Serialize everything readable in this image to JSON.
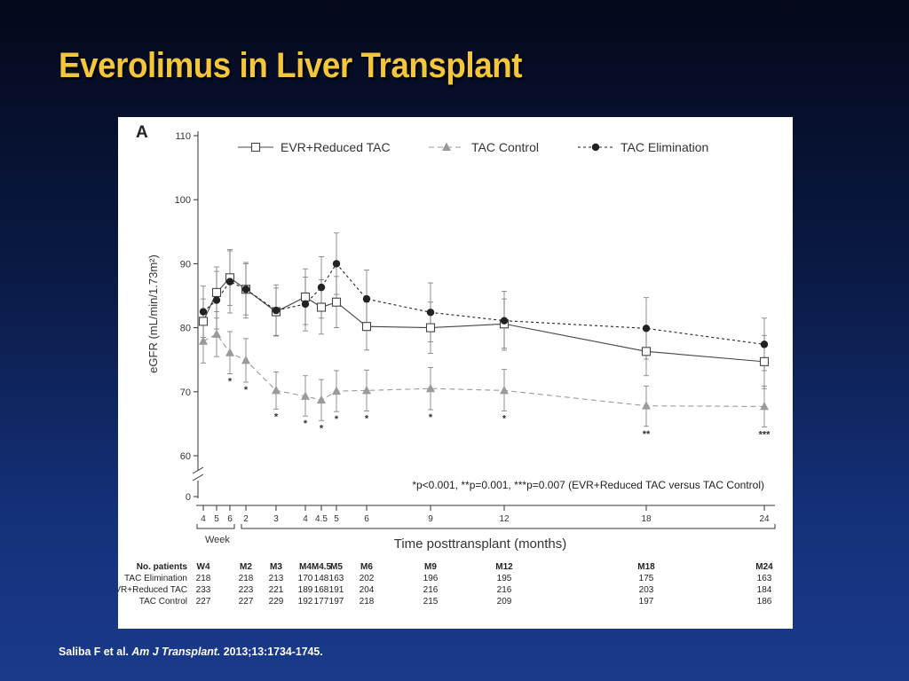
{
  "slide": {
    "title": "Everolimus in Liver Transplant",
    "citation": {
      "authors": "Saliba F et al.",
      "journal": "Am J Transplant.",
      "details": "2013;13:1734-1745."
    }
  },
  "chart_data": {
    "type": "line",
    "panel_label": "A",
    "xlabel": "Time posttransplant (months)",
    "ylabel": "eGFR (mL/min/1.73m²)",
    "ylim": [
      60,
      110
    ],
    "yticks": [
      "110",
      "100",
      "90",
      "80",
      "70",
      "60"
    ],
    "y_zero_label": "0",
    "week_group_label": "Week",
    "x_timepoints": [
      {
        "key": "W4",
        "tick": "4"
      },
      {
        "key": "W5",
        "tick": "5"
      },
      {
        "key": "W6",
        "tick": "6"
      },
      {
        "key": "M2",
        "tick": "2"
      },
      {
        "key": "M3",
        "tick": "3"
      },
      {
        "key": "M4",
        "tick": "4"
      },
      {
        "key": "M4.5",
        "tick": "4.5"
      },
      {
        "key": "M5",
        "tick": "5"
      },
      {
        "key": "M6",
        "tick": "6"
      },
      {
        "key": "M9",
        "tick": "9"
      },
      {
        "key": "M12",
        "tick": "12"
      },
      {
        "key": "M18",
        "tick": "18"
      },
      {
        "key": "M24",
        "tick": "24"
      }
    ],
    "series": [
      {
        "name": "EVR+Reduced TAC",
        "marker": "open-square",
        "line": "solid",
        "color": "#444444",
        "points": [
          {
            "t": "W4",
            "y": 81.0,
            "lo": 77.5,
            "hi": 84.5
          },
          {
            "t": "W5",
            "y": 85.5,
            "lo": 81.5,
            "hi": 89.5
          },
          {
            "t": "W6",
            "y": 87.8,
            "lo": 83.5,
            "hi": 92.0
          },
          {
            "t": "M2",
            "y": 86.0,
            "lo": 82.0,
            "hi": 90.0
          },
          {
            "t": "M3",
            "y": 82.5,
            "lo": 78.8,
            "hi": 86.2
          },
          {
            "t": "M4",
            "y": 84.8,
            "lo": 80.5,
            "hi": 89.2
          },
          {
            "t": "M4.5",
            "y": 83.2,
            "lo": 79.0,
            "hi": 87.5
          },
          {
            "t": "M5",
            "y": 84.0,
            "lo": 80.0,
            "hi": 88.0
          },
          {
            "t": "M6",
            "y": 80.2,
            "lo": 76.5,
            "hi": 84.0
          },
          {
            "t": "M9",
            "y": 80.0,
            "lo": 76.0,
            "hi": 84.0
          },
          {
            "t": "M12",
            "y": 80.6,
            "lo": 76.8,
            "hi": 84.5
          },
          {
            "t": "M18",
            "y": 76.3,
            "lo": 72.5,
            "hi": 80.2
          },
          {
            "t": "M24",
            "y": 74.7,
            "lo": 70.5,
            "hi": 78.8
          }
        ]
      },
      {
        "name": "TAC Control",
        "marker": "triangle",
        "line": "dashed",
        "color": "#9a9a9a",
        "points": [
          {
            "t": "W4",
            "y": 77.9,
            "lo": 74.5,
            "hi": 81.3
          },
          {
            "t": "W5",
            "y": 79.0,
            "lo": 75.5,
            "hi": 82.5
          },
          {
            "t": "W6",
            "y": 76.1,
            "lo": 72.8,
            "hi": 79.4
          },
          {
            "t": "M2",
            "y": 74.9,
            "lo": 71.5,
            "hi": 78.3
          },
          {
            "t": "M3",
            "y": 70.2,
            "lo": 67.3,
            "hi": 73.1
          },
          {
            "t": "M4",
            "y": 69.3,
            "lo": 66.2,
            "hi": 72.5
          },
          {
            "t": "M4.5",
            "y": 68.7,
            "lo": 65.5,
            "hi": 71.9
          },
          {
            "t": "M5",
            "y": 70.1,
            "lo": 66.9,
            "hi": 73.3
          },
          {
            "t": "M6",
            "y": 70.2,
            "lo": 67.0,
            "hi": 73.4
          },
          {
            "t": "M9",
            "y": 70.5,
            "lo": 67.2,
            "hi": 73.8
          },
          {
            "t": "M12",
            "y": 70.2,
            "lo": 67.0,
            "hi": 73.5
          },
          {
            "t": "M18",
            "y": 67.8,
            "lo": 64.6,
            "hi": 70.9
          },
          {
            "t": "M24",
            "y": 67.7,
            "lo": 64.5,
            "hi": 70.9
          }
        ]
      },
      {
        "name": "TAC Elimination",
        "marker": "filled-circle",
        "line": "dotted",
        "color": "#222222",
        "points": [
          {
            "t": "W4",
            "y": 82.5,
            "lo": 78.5,
            "hi": 86.5
          },
          {
            "t": "W5",
            "y": 84.3,
            "lo": 79.8,
            "hi": 88.8
          },
          {
            "t": "W6",
            "y": 87.2,
            "lo": 82.3,
            "hi": 92.2
          },
          {
            "t": "M2",
            "y": 86.0,
            "lo": 81.5,
            "hi": 90.2
          },
          {
            "t": "M3",
            "y": 82.7,
            "lo": 78.7,
            "hi": 86.7
          },
          {
            "t": "M4",
            "y": 83.7,
            "lo": 79.5,
            "hi": 87.9
          },
          {
            "t": "M4.5",
            "y": 86.3,
            "lo": 81.5,
            "hi": 91.1
          },
          {
            "t": "M5",
            "y": 90.0,
            "lo": 85.2,
            "hi": 94.8
          },
          {
            "t": "M6",
            "y": 84.5,
            "lo": 80.0,
            "hi": 89.0
          },
          {
            "t": "M9",
            "y": 82.4,
            "lo": 77.8,
            "hi": 87.0
          },
          {
            "t": "M12",
            "y": 81.1,
            "lo": 76.5,
            "hi": 85.7
          },
          {
            "t": "M18",
            "y": 79.9,
            "lo": 75.1,
            "hi": 84.7
          },
          {
            "t": "M24",
            "y": 77.4,
            "lo": 73.3,
            "hi": 81.5
          }
        ]
      }
    ],
    "significance_marks": [
      {
        "t": "W6",
        "label": "*"
      },
      {
        "t": "M2",
        "label": "*"
      },
      {
        "t": "M3",
        "label": "*"
      },
      {
        "t": "M4",
        "label": "*"
      },
      {
        "t": "M4.5",
        "label": "*"
      },
      {
        "t": "M5",
        "label": "*"
      },
      {
        "t": "M6",
        "label": "*"
      },
      {
        "t": "M9",
        "label": "*"
      },
      {
        "t": "M12",
        "label": "*"
      },
      {
        "t": "M18",
        "label": "**"
      },
      {
        "t": "M24",
        "label": "***"
      }
    ],
    "footnote": "*p<0.001, **p=0.001, ***p=0.007 (EVR+Reduced TAC versus TAC Control)",
    "legend_position": "top",
    "patients_table": {
      "header_label": "No. patients",
      "columns": [
        {
          "t": "W4",
          "label": "W4"
        },
        {
          "t": "M2",
          "label": "M2"
        },
        {
          "t": "M3",
          "label": "M3"
        },
        {
          "t": "M4",
          "label": "M4"
        },
        {
          "t": "M4.5",
          "label": "M4.5"
        },
        {
          "t": "M5",
          "label": "M5"
        },
        {
          "t": "M6",
          "label": "M6"
        },
        {
          "t": "M9",
          "label": "M9"
        },
        {
          "t": "M12",
          "label": "M12"
        },
        {
          "t": "M18",
          "label": "M18"
        },
        {
          "t": "M24",
          "label": "M24"
        }
      ],
      "rows": [
        {
          "label": "TAC Elimination",
          "values": [
            "218",
            "218",
            "213",
            "170",
            "148",
            "163",
            "202",
            "196",
            "195",
            "175",
            "163"
          ]
        },
        {
          "label": "EVR+Reduced TAC",
          "values": [
            "233",
            "223",
            "221",
            "189",
            "168",
            "191",
            "204",
            "216",
            "216",
            "203",
            "184"
          ]
        },
        {
          "label": "TAC Control",
          "values": [
            "227",
            "227",
            "229",
            "192",
            "177",
            "197",
            "218",
            "215",
            "209",
            "197",
            "186"
          ]
        }
      ]
    }
  }
}
